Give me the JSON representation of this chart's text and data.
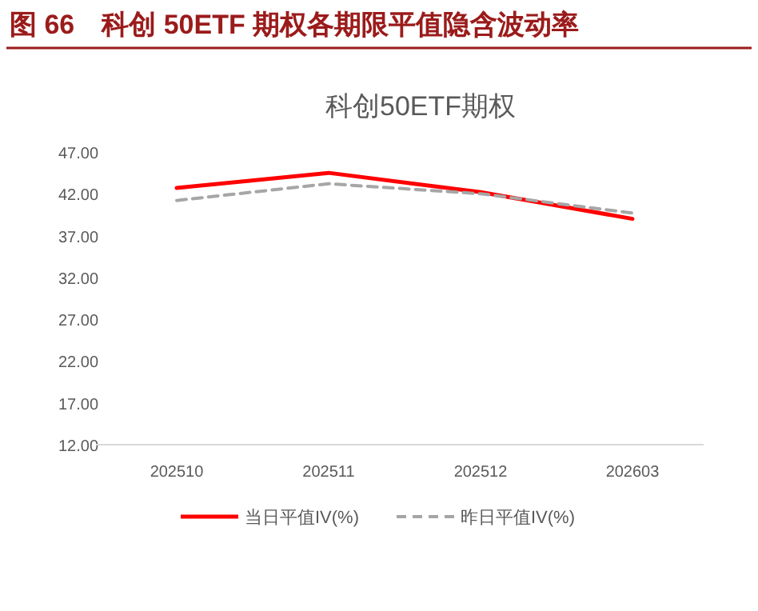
{
  "chart_data": {
    "type": "line",
    "title": "图 66　科创 50ETF 期权各期限平值隐含波动率",
    "subtitle": "科创50ETF期权",
    "categories": [
      "202510",
      "202511",
      "202512",
      "202603"
    ],
    "series": [
      {
        "name": "当日平值IV(%)",
        "color": "#ff0000",
        "values": [
          42.7,
          44.5,
          42.2,
          39.0
        ],
        "line_style": "solid"
      },
      {
        "name": "昨日平值IV(%)",
        "color": "#a6a6a6",
        "values": [
          41.2,
          43.2,
          42.0,
          39.7
        ],
        "line_style": "dashed"
      }
    ],
    "ylim": [
      12,
      47
    ],
    "yticks": [
      {
        "value": 12,
        "label": "12.00"
      },
      {
        "value": 17,
        "label": "17.00"
      },
      {
        "value": 22,
        "label": "22.00"
      },
      {
        "value": 27,
        "label": "27.00"
      },
      {
        "value": 32,
        "label": "32.00"
      },
      {
        "value": 37,
        "label": "37.00"
      },
      {
        "value": 42,
        "label": "42.00"
      },
      {
        "value": 47,
        "label": "47.00"
      }
    ],
    "grid": false,
    "legend": "bottom",
    "marker": "none"
  }
}
